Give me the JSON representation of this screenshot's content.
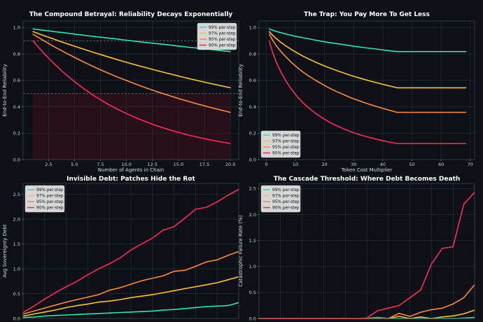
{
  "chart_data": [
    {
      "id": "p1",
      "type": "line",
      "title": "The Compound Betrayal: Reliability Decays Exponentially",
      "xlabel": "Number of Agents in Chain",
      "ylabel": "End-to-End Reliability",
      "xlim": [
        0.05,
        20.8
      ],
      "ylim": [
        0,
        1.05
      ],
      "xticks": [
        2.5,
        5.0,
        7.5,
        10.0,
        12.5,
        15.0,
        17.5,
        20.0
      ],
      "xtick_labels": [
        "2.5",
        "5.0",
        "7.5",
        "10.0",
        "12.5",
        "15.0",
        "17.5",
        "20.0"
      ],
      "yticks": [
        0,
        0.2,
        0.4,
        0.6,
        0.8,
        1.0
      ],
      "ytick_labels": [
        "0.0",
        "0.2",
        "0.4",
        "0.6",
        "0.8",
        "1.0"
      ],
      "legend_position": "top-right",
      "reference_lines": [
        0.9,
        0.5
      ],
      "danger_zone": {
        "x": [
          1,
          20
        ],
        "y": [
          0,
          0.5
        ],
        "color": "#2a1019"
      },
      "series": [
        {
          "name": "99% per-step",
          "color": "#2ee6b0",
          "x": [
            1,
            2,
            3,
            4,
            5,
            6,
            7,
            8,
            9,
            10,
            11,
            12,
            13,
            14,
            15,
            16,
            17,
            18,
            19,
            20
          ],
          "values": [
            0.99,
            0.98,
            0.97,
            0.961,
            0.951,
            0.941,
            0.932,
            0.923,
            0.914,
            0.904,
            0.895,
            0.886,
            0.878,
            0.869,
            0.86,
            0.851,
            0.843,
            0.835,
            0.826,
            0.818
          ]
        },
        {
          "name": "97% per-step",
          "color": "#ffc233",
          "x": [
            1,
            2,
            3,
            4,
            5,
            6,
            7,
            8,
            9,
            10,
            11,
            12,
            13,
            14,
            15,
            16,
            17,
            18,
            19,
            20
          ],
          "values": [
            0.97,
            0.941,
            0.913,
            0.885,
            0.859,
            0.833,
            0.808,
            0.784,
            0.76,
            0.737,
            0.715,
            0.694,
            0.673,
            0.653,
            0.633,
            0.614,
            0.596,
            0.578,
            0.561,
            0.544
          ]
        },
        {
          "name": "95% per-step",
          "color": "#ff8a3d",
          "x": [
            1,
            2,
            3,
            4,
            5,
            6,
            7,
            8,
            9,
            10,
            11,
            12,
            13,
            14,
            15,
            16,
            17,
            18,
            19,
            20
          ],
          "values": [
            0.95,
            0.903,
            0.857,
            0.815,
            0.774,
            0.735,
            0.698,
            0.663,
            0.63,
            0.599,
            0.569,
            0.54,
            0.513,
            0.488,
            0.463,
            0.44,
            0.418,
            0.397,
            0.377,
            0.358
          ]
        },
        {
          "name": "90% per-step",
          "color": "#ff2d55",
          "x": [
            1,
            2,
            3,
            4,
            5,
            6,
            7,
            8,
            9,
            10,
            11,
            12,
            13,
            14,
            15,
            16,
            17,
            18,
            19,
            20
          ],
          "values": [
            0.9,
            0.81,
            0.729,
            0.656,
            0.59,
            0.531,
            0.478,
            0.43,
            0.387,
            0.349,
            0.314,
            0.282,
            0.254,
            0.229,
            0.206,
            0.185,
            0.167,
            0.15,
            0.135,
            0.122
          ]
        }
      ]
    },
    {
      "id": "p2",
      "type": "line",
      "title": "The Trap: You Pay More To Get Less",
      "xlabel": "Token Cost Multiplier",
      "ylabel": "End-to-End Reliability",
      "xlim": [
        -2.5,
        71.5
      ],
      "ylim": [
        0,
        1.05
      ],
      "xticks": [
        0,
        10,
        20,
        30,
        40,
        50,
        60,
        70
      ],
      "xtick_labels": [
        "0",
        "10",
        "20",
        "30",
        "40",
        "50",
        "60",
        "70"
      ],
      "yticks": [
        0,
        0.2,
        0.4,
        0.6,
        0.8,
        1.0
      ],
      "ytick_labels": [
        "0.0",
        "0.2",
        "0.4",
        "0.6",
        "0.8",
        "1.0"
      ],
      "legend_position": "bottom-left",
      "series": [
        {
          "name": "99% per-step",
          "color": "#2ee6b0",
          "x": [
            1.0,
            2.2,
            3.6,
            5.2,
            6.9,
            8.7,
            10.6,
            12.6,
            14.8,
            17.0,
            19.4,
            21.8,
            24.4,
            27.0,
            29.7,
            32.6,
            35.5,
            38.6,
            41.7,
            44.9,
            48.3,
            51.7,
            55.2,
            58.8,
            62.5,
            66.2,
            68.5
          ],
          "values": [
            0.99,
            0.98,
            0.97,
            0.961,
            0.951,
            0.941,
            0.932,
            0.923,
            0.914,
            0.904,
            0.895,
            0.886,
            0.878,
            0.869,
            0.86,
            0.851,
            0.843,
            0.835,
            0.826,
            0.818,
            0.818,
            0.818,
            0.818,
            0.818,
            0.818,
            0.818,
            0.818
          ]
        },
        {
          "name": "97% per-step",
          "color": "#ffc233",
          "x": [
            1.0,
            2.2,
            3.6,
            5.2,
            6.9,
            8.7,
            10.6,
            12.6,
            14.8,
            17.0,
            19.4,
            21.8,
            24.4,
            27.0,
            29.7,
            32.6,
            35.5,
            38.6,
            41.7,
            44.9,
            48.3,
            51.7,
            55.2,
            58.8,
            62.5,
            66.2,
            68.5
          ],
          "values": [
            0.97,
            0.941,
            0.913,
            0.885,
            0.859,
            0.833,
            0.808,
            0.784,
            0.76,
            0.737,
            0.715,
            0.694,
            0.673,
            0.653,
            0.633,
            0.614,
            0.596,
            0.578,
            0.561,
            0.544,
            0.544,
            0.544,
            0.544,
            0.544,
            0.544,
            0.544,
            0.544
          ]
        },
        {
          "name": "95% per-step",
          "color": "#ff8a3d",
          "x": [
            1.0,
            2.2,
            3.6,
            5.2,
            6.9,
            8.7,
            10.6,
            12.6,
            14.8,
            17.0,
            19.4,
            21.8,
            24.4,
            27.0,
            29.7,
            32.6,
            35.5,
            38.6,
            41.7,
            44.9,
            48.3,
            51.7,
            55.2,
            58.8,
            62.5,
            66.2,
            68.5
          ],
          "values": [
            0.95,
            0.903,
            0.857,
            0.815,
            0.774,
            0.735,
            0.698,
            0.663,
            0.63,
            0.599,
            0.569,
            0.54,
            0.513,
            0.488,
            0.463,
            0.44,
            0.418,
            0.397,
            0.377,
            0.358,
            0.358,
            0.358,
            0.358,
            0.358,
            0.358,
            0.358,
            0.358
          ]
        },
        {
          "name": "90% per-step",
          "color": "#ff2d55",
          "x": [
            1.0,
            2.2,
            3.6,
            5.2,
            6.9,
            8.7,
            10.6,
            12.6,
            14.8,
            17.0,
            19.4,
            21.8,
            24.4,
            27.0,
            29.7,
            32.6,
            35.5,
            38.6,
            41.7,
            44.9,
            48.3,
            51.7,
            55.2,
            58.8,
            62.5,
            66.2,
            68.5
          ],
          "values": [
            0.9,
            0.81,
            0.729,
            0.656,
            0.59,
            0.531,
            0.478,
            0.43,
            0.387,
            0.349,
            0.314,
            0.282,
            0.254,
            0.229,
            0.206,
            0.185,
            0.167,
            0.15,
            0.135,
            0.122,
            0.122,
            0.122,
            0.122,
            0.122,
            0.122,
            0.122,
            0.122
          ]
        }
      ]
    },
    {
      "id": "p3",
      "type": "line",
      "title": "Invisible Debt: Patches Hide the Rot",
      "xlabel": "",
      "ylabel": "Avg Sovereignty Debt",
      "xlim": [
        0,
        1
      ],
      "ylim": [
        0,
        2.72
      ],
      "xticks": [],
      "xtick_labels": [],
      "yticks": [
        0,
        0.5,
        1.0,
        1.5,
        2.0,
        2.5
      ],
      "ytick_labels": [
        "0.0",
        "0.5",
        "1.0",
        "1.5",
        "2.0",
        "2.5"
      ],
      "legend_position": "top-left",
      "series": [
        {
          "name": "99% per-step",
          "color": "#2ee6b0",
          "x": [
            0.0,
            0.05,
            0.1,
            0.15,
            0.2,
            0.25,
            0.3,
            0.35,
            0.4,
            0.45,
            0.5,
            0.55,
            0.6,
            0.65,
            0.7,
            0.75,
            0.8,
            0.85,
            0.9,
            0.95,
            1.0
          ],
          "values": [
            0.02,
            0.03,
            0.05,
            0.06,
            0.07,
            0.08,
            0.09,
            0.1,
            0.11,
            0.12,
            0.13,
            0.14,
            0.15,
            0.17,
            0.18,
            0.2,
            0.22,
            0.24,
            0.25,
            0.26,
            0.32
          ]
        },
        {
          "name": "97% per-step",
          "color": "#ffc233",
          "x": [
            0.0,
            0.05,
            0.1,
            0.15,
            0.2,
            0.25,
            0.3,
            0.35,
            0.4,
            0.45,
            0.5,
            0.55,
            0.6,
            0.65,
            0.7,
            0.75,
            0.8,
            0.85,
            0.9,
            0.95,
            1.0
          ],
          "values": [
            0.05,
            0.09,
            0.13,
            0.17,
            0.22,
            0.26,
            0.29,
            0.33,
            0.35,
            0.38,
            0.42,
            0.45,
            0.48,
            0.52,
            0.56,
            0.6,
            0.64,
            0.68,
            0.72,
            0.78,
            0.84
          ]
        },
        {
          "name": "95% per-step",
          "color": "#ff8a3d",
          "x": [
            0.0,
            0.05,
            0.1,
            0.15,
            0.2,
            0.25,
            0.3,
            0.35,
            0.4,
            0.45,
            0.5,
            0.55,
            0.6,
            0.65,
            0.7,
            0.75,
            0.8,
            0.85,
            0.9,
            0.95,
            1.0
          ],
          "values": [
            0.09,
            0.15,
            0.21,
            0.27,
            0.33,
            0.38,
            0.43,
            0.48,
            0.57,
            0.62,
            0.69,
            0.76,
            0.81,
            0.86,
            0.95,
            0.97,
            1.05,
            1.14,
            1.18,
            1.27,
            1.35
          ]
        },
        {
          "name": "90% per-step",
          "color": "#ff2d55",
          "x": [
            0.0,
            0.05,
            0.1,
            0.15,
            0.2,
            0.25,
            0.3,
            0.35,
            0.4,
            0.45,
            0.5,
            0.55,
            0.6,
            0.65,
            0.7,
            0.75,
            0.8,
            0.85,
            0.9,
            0.95,
            1.0
          ],
          "values": [
            0.12,
            0.25,
            0.39,
            0.52,
            0.64,
            0.75,
            0.88,
            1.0,
            1.1,
            1.22,
            1.38,
            1.5,
            1.62,
            1.78,
            1.85,
            2.02,
            2.2,
            2.24,
            2.35,
            2.48,
            2.6
          ]
        }
      ]
    },
    {
      "id": "p4",
      "type": "line",
      "title": "The Cascade Threshold: Where Debt Becomes Death",
      "xlabel": "",
      "ylabel": "Catastrophic Failure Rate (%)",
      "xlim": [
        0,
        1
      ],
      "ylim": [
        0,
        2.6
      ],
      "xticks": [],
      "xtick_labels": [],
      "yticks": [
        0,
        0.5,
        1.0,
        1.5,
        2.0,
        2.5
      ],
      "ytick_labels": [
        "0.0",
        "0.5",
        "1.0",
        "1.5",
        "2.0",
        "2.5"
      ],
      "legend_position": "top-left",
      "series": [
        {
          "name": "99% per-step",
          "color": "#2ee6b0",
          "x": [
            0.0,
            0.05,
            0.1,
            0.15,
            0.2,
            0.25,
            0.3,
            0.35,
            0.4,
            0.45,
            0.5,
            0.55,
            0.6,
            0.65,
            0.7,
            0.75,
            0.8,
            0.85,
            0.9,
            0.95,
            1.0
          ],
          "values": [
            0,
            0,
            0,
            0,
            0,
            0,
            0,
            0,
            0,
            0,
            0,
            0,
            0,
            0,
            0,
            0,
            0,
            0,
            0,
            0.01,
            0.02
          ]
        },
        {
          "name": "97% per-step",
          "color": "#ffc233",
          "x": [
            0.0,
            0.05,
            0.1,
            0.15,
            0.2,
            0.25,
            0.3,
            0.35,
            0.4,
            0.45,
            0.5,
            0.55,
            0.6,
            0.65,
            0.7,
            0.75,
            0.8,
            0.85,
            0.9,
            0.95,
            1.0
          ],
          "values": [
            0,
            0,
            0,
            0,
            0,
            0,
            0,
            0,
            0,
            0,
            0,
            0.02,
            0,
            0.04,
            0,
            0.03,
            0,
            0.03,
            0.05,
            0.09,
            0.16
          ]
        },
        {
          "name": "95% per-step",
          "color": "#ff8a3d",
          "x": [
            0.0,
            0.05,
            0.1,
            0.15,
            0.2,
            0.25,
            0.3,
            0.35,
            0.4,
            0.45,
            0.5,
            0.55,
            0.6,
            0.65,
            0.7,
            0.75,
            0.8,
            0.85,
            0.9,
            0.95,
            1.0
          ],
          "values": [
            0,
            0,
            0,
            0,
            0,
            0,
            0,
            0,
            0,
            0,
            0,
            0.02,
            0,
            0.1,
            0.04,
            0.12,
            0.17,
            0.2,
            0.28,
            0.4,
            0.65
          ]
        },
        {
          "name": "90% per-step",
          "color": "#ff2d55",
          "x": [
            0.0,
            0.05,
            0.1,
            0.15,
            0.2,
            0.25,
            0.3,
            0.35,
            0.4,
            0.45,
            0.5,
            0.55,
            0.6,
            0.65,
            0.7,
            0.75,
            0.8,
            0.85,
            0.9,
            0.95,
            1.0
          ],
          "values": [
            0,
            0,
            0,
            0,
            0,
            0,
            0,
            0,
            0,
            0,
            0.01,
            0.15,
            0.2,
            0.25,
            0.4,
            0.55,
            1.05,
            1.35,
            1.38,
            2.2,
            2.43
          ]
        }
      ]
    }
  ]
}
